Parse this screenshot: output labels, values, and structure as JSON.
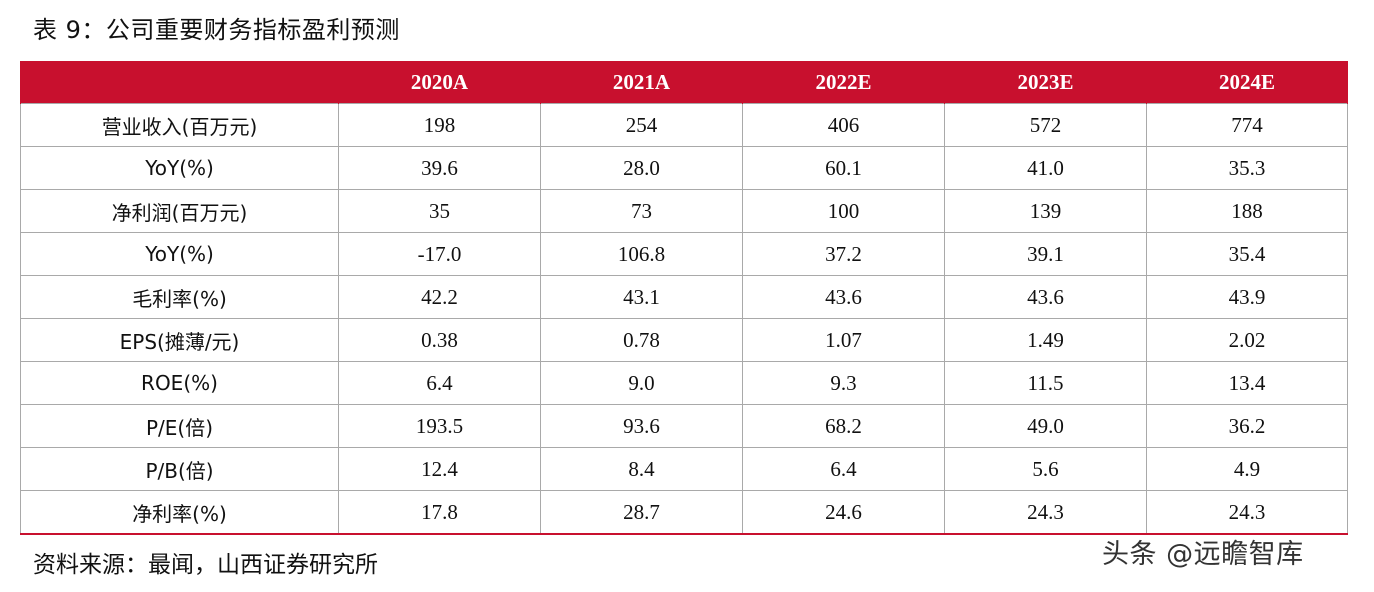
{
  "title": "表 9：公司重要财务指标盈利预测",
  "table": {
    "header": [
      "",
      "2020A",
      "2021A",
      "2022E",
      "2023E",
      "2024E"
    ],
    "rows": [
      [
        "营业收入(百万元)",
        "198",
        "254",
        "406",
        "572",
        "774"
      ],
      [
        "YoY(%)",
        "39.6",
        "28.0",
        "60.1",
        "41.0",
        "35.3"
      ],
      [
        "净利润(百万元)",
        "35",
        "73",
        "100",
        "139",
        "188"
      ],
      [
        "YoY(%)",
        "-17.0",
        "106.8",
        "37.2",
        "39.1",
        "35.4"
      ],
      [
        "毛利率(%)",
        "42.2",
        "43.1",
        "43.6",
        "43.6",
        "43.9"
      ],
      [
        "EPS(摊薄/元)",
        "0.38",
        "0.78",
        "1.07",
        "1.49",
        "2.02"
      ],
      [
        "ROE(%)",
        "6.4",
        "9.0",
        "9.3",
        "11.5",
        "13.4"
      ],
      [
        "P/E(倍)",
        "193.5",
        "93.6",
        "68.2",
        "49.0",
        "36.2"
      ],
      [
        "P/B(倍)",
        "12.4",
        "8.4",
        "6.4",
        "5.6",
        "4.9"
      ],
      [
        "净利率(%)",
        "17.8",
        "28.7",
        "24.6",
        "24.3",
        "24.3"
      ]
    ]
  },
  "source": "资料来源：最闻，山西证券研究所",
  "watermark": "头条 @远瞻智库",
  "colors": {
    "header_bg": "#c8102e",
    "header_text": "#ffffff",
    "grid": "#a9a9a9"
  }
}
